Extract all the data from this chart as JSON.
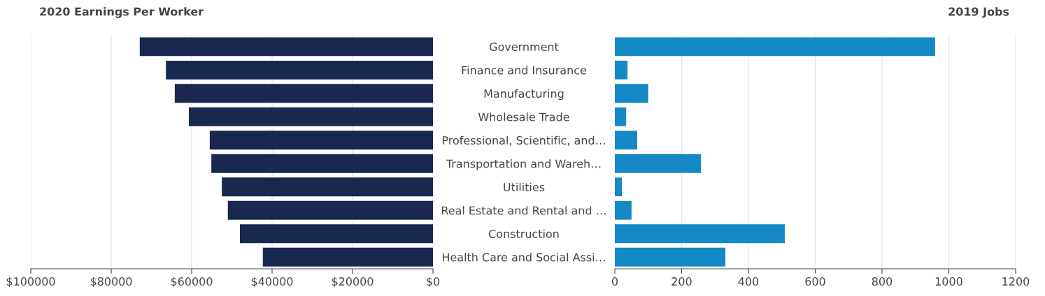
{
  "chart_data": [
    {
      "type": "bar",
      "orientation": "horizontal",
      "title": "2020 Earnings Per Worker",
      "tick_labels": "x",
      "grid": "x",
      "color": "#18284f",
      "categories": [
        null,
        null,
        null,
        null,
        null,
        null,
        null,
        null,
        null,
        null
      ],
      "values": [
        72900,
        66400,
        64200,
        60700,
        55500,
        55100,
        52500,
        51000,
        48000,
        42300
      ],
      "xlim": [
        100000,
        0
      ],
      "xticks": [
        {
          "value": 100000,
          "label": "$100000"
        },
        {
          "value": 80000,
          "label": "$80000"
        },
        {
          "value": 60000,
          "label": "$60000"
        },
        {
          "value": 40000,
          "label": "$40000"
        },
        {
          "value": 20000,
          "label": "$20000"
        },
        {
          "value": 0,
          "label": "$0"
        }
      ]
    },
    {
      "type": "bar",
      "orientation": "horizontal",
      "title": "2019 Jobs",
      "grid": "x",
      "color": "#1589c6",
      "categories": [
        "Government",
        "Finance and Insurance",
        "Manufacturing",
        "Wholesale Trade",
        "Professional, Scientific, and…",
        "Transportation and Wareh…",
        "Utilities",
        "Real Estate and Rental and …",
        "Construction",
        "Health Care and Social Assi…"
      ],
      "values": [
        959,
        38,
        100,
        34,
        67,
        258,
        21,
        50,
        509,
        331
      ],
      "xlim": [
        0,
        1200
      ],
      "xticks": [
        0,
        200,
        400,
        600,
        800,
        1000,
        1200
      ]
    }
  ]
}
